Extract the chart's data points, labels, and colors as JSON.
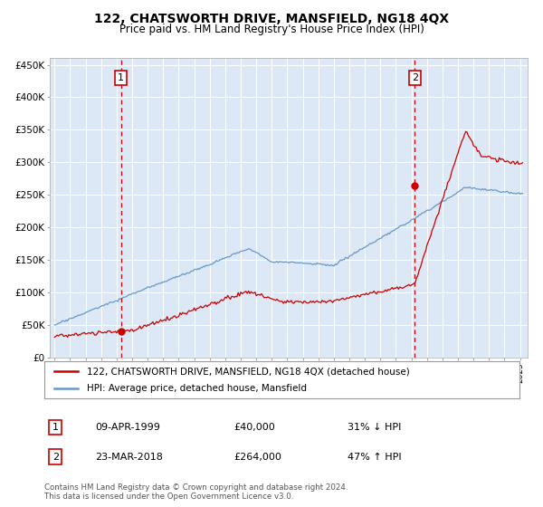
{
  "title": "122, CHATSWORTH DRIVE, MANSFIELD, NG18 4QX",
  "subtitle": "Price paid vs. HM Land Registry's House Price Index (HPI)",
  "bg_color": "#dce8f5",
  "sale1": {
    "date_num": 1999.28,
    "price": 40000,
    "label": "1",
    "date_str": "09-APR-1999",
    "pct": "31% ↓ HPI"
  },
  "sale2": {
    "date_num": 2018.22,
    "price": 264000,
    "label": "2",
    "date_str": "23-MAR-2018",
    "pct": "47% ↑ HPI"
  },
  "legend1": "122, CHATSWORTH DRIVE, MANSFIELD, NG18 4QX (detached house)",
  "legend2": "HPI: Average price, detached house, Mansfield",
  "table_row1": [
    "1",
    "09-APR-1999",
    "£40,000",
    "31% ↓ HPI"
  ],
  "table_row2": [
    "2",
    "23-MAR-2018",
    "£264,000",
    "47% ↑ HPI"
  ],
  "footer": "Contains HM Land Registry data © Crown copyright and database right 2024.\nThis data is licensed under the Open Government Licence v3.0.",
  "ylim": [
    0,
    460000
  ],
  "yticks": [
    0,
    50000,
    100000,
    150000,
    200000,
    250000,
    300000,
    350000,
    400000,
    450000
  ],
  "ytick_labels": [
    "£0",
    "£50K",
    "£100K",
    "£150K",
    "£200K",
    "£250K",
    "£300K",
    "£350K",
    "£400K",
    "£450K"
  ],
  "xlim_start": 1994.7,
  "xlim_end": 2025.5,
  "red_color": "#cc0000",
  "blue_color": "#6699cc",
  "title_fontsize": 10,
  "subtitle_fontsize": 8.5
}
